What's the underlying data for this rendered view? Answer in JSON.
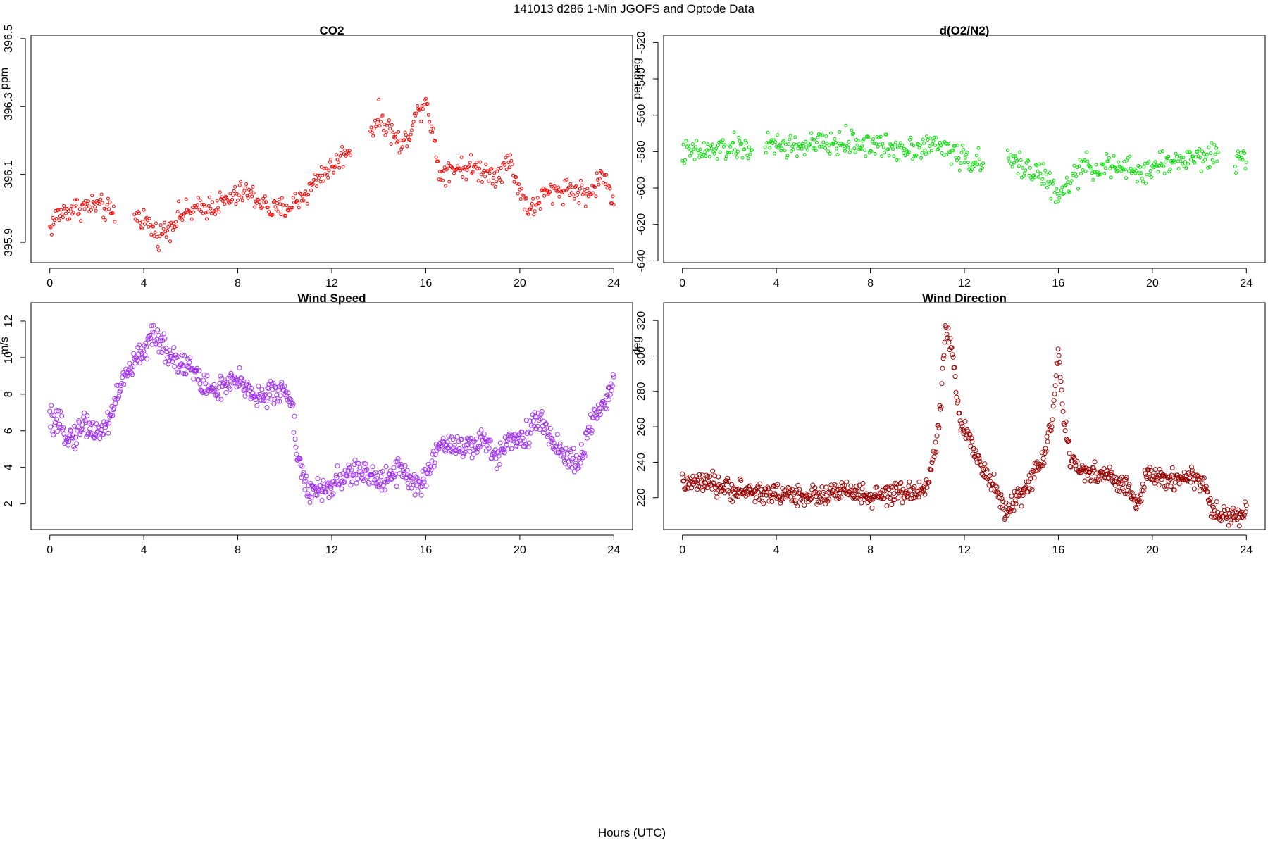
{
  "figure": {
    "title": "141013   d286   1-Min  JGOFS and Optode Data",
    "xlabel": "Hours (UTC)"
  },
  "chart_data": [
    {
      "type": "scatter",
      "title": "CO2",
      "ylabel": "ppm",
      "color": "#ff0000",
      "xlim": [
        -0.8,
        24.8
      ],
      "ylim": [
        395.84,
        396.51
      ],
      "x_ticks": [
        0,
        4,
        8,
        12,
        16,
        20,
        24
      ],
      "x_tick_labels": [
        "0",
        "4",
        "8",
        "12",
        "16",
        "20",
        "24"
      ],
      "y_ticks": [
        395.9,
        396.1,
        396.3,
        396.5
      ],
      "y_tick_labels": [
        "395.9",
        "396.1",
        "396.3",
        "396.5"
      ],
      "marker_radius": 2,
      "gaps": [
        [
          2.8,
          3.6
        ],
        [
          12.8,
          13.6
        ]
      ],
      "sample_step_hours": 0.04,
      "series": [
        {
          "trend_knots": [
            [
              0,
              395.94
            ],
            [
              0.3,
              395.98
            ],
            [
              1.0,
              396.0
            ],
            [
              2.0,
              396.01
            ],
            [
              2.8,
              395.98
            ],
            [
              3.6,
              395.98
            ],
            [
              4.0,
              395.97
            ],
            [
              4.6,
              395.92
            ],
            [
              5.0,
              395.94
            ],
            [
              5.5,
              395.98
            ],
            [
              6.5,
              396.0
            ],
            [
              7.5,
              396.02
            ],
            [
              8.3,
              396.05
            ],
            [
              9.0,
              396.02
            ],
            [
              9.5,
              395.99
            ],
            [
              10.3,
              396.01
            ],
            [
              11.0,
              396.05
            ],
            [
              11.5,
              396.1
            ],
            [
              12.0,
              396.12
            ],
            [
              12.8,
              396.18
            ],
            [
              13.6,
              396.22
            ],
            [
              14.0,
              396.27
            ],
            [
              14.5,
              396.23
            ],
            [
              15.0,
              396.18
            ],
            [
              15.5,
              396.26
            ],
            [
              16.0,
              396.33
            ],
            [
              16.3,
              396.22
            ],
            [
              16.6,
              396.1
            ],
            [
              17.0,
              396.12
            ],
            [
              18.0,
              396.12
            ],
            [
              19.0,
              396.1
            ],
            [
              19.6,
              396.14
            ],
            [
              20.0,
              396.05
            ],
            [
              20.5,
              395.99
            ],
            [
              21.0,
              396.04
            ],
            [
              22.0,
              396.06
            ],
            [
              23.0,
              396.04
            ],
            [
              23.5,
              396.1
            ],
            [
              24.0,
              396.03
            ]
          ],
          "noise": 0.03
        }
      ]
    },
    {
      "type": "scatter",
      "title": "d(O2/N2)",
      "ylabel": "per meg",
      "color": "#00e000",
      "xlim": [
        -0.8,
        24.8
      ],
      "ylim": [
        -641,
        -516
      ],
      "x_ticks": [
        0,
        4,
        8,
        12,
        16,
        20,
        24
      ],
      "x_tick_labels": [
        "0",
        "4",
        "8",
        "12",
        "16",
        "20",
        "24"
      ],
      "y_ticks": [
        -640,
        -620,
        -600,
        -580,
        -560,
        -540,
        -520
      ],
      "y_tick_labels": [
        "-640",
        "-620",
        "-600",
        "-580",
        "-560",
        "-540",
        "-520"
      ],
      "marker_radius": 2,
      "gaps": [
        [
          3.0,
          3.5
        ],
        [
          12.8,
          13.8
        ],
        [
          22.8,
          23.5
        ]
      ],
      "sample_step_hours": 0.04,
      "series": [
        {
          "trend_knots": [
            [
              0,
              -581
            ],
            [
              1.0,
              -580
            ],
            [
              2.0,
              -578
            ],
            [
              3.0,
              -578
            ],
            [
              3.5,
              -577
            ],
            [
              5.0,
              -577
            ],
            [
              6.0,
              -576
            ],
            [
              7.0,
              -575
            ],
            [
              8.0,
              -576
            ],
            [
              9.0,
              -578
            ],
            [
              10.0,
              -577
            ],
            [
              11.0,
              -577
            ],
            [
              11.5,
              -580
            ],
            [
              12.0,
              -584
            ],
            [
              12.8,
              -587
            ],
            [
              13.8,
              -585
            ],
            [
              14.5,
              -588
            ],
            [
              15.0,
              -590
            ],
            [
              15.5,
              -595
            ],
            [
              16.0,
              -606
            ],
            [
              16.4,
              -598
            ],
            [
              17.0,
              -589
            ],
            [
              18.0,
              -588
            ],
            [
              19.0,
              -590
            ],
            [
              19.6,
              -592
            ],
            [
              20.0,
              -588
            ],
            [
              21.0,
              -585
            ],
            [
              22.0,
              -583
            ],
            [
              22.8,
              -582
            ],
            [
              23.5,
              -584
            ],
            [
              24.0,
              -583
            ]
          ],
          "noise": 6
        }
      ]
    },
    {
      "type": "scatter",
      "title": "Wind Speed",
      "ylabel": "m/s",
      "color": "#a030f0",
      "xlim": [
        -0.8,
        24.8
      ],
      "ylim": [
        0.6,
        13.0
      ],
      "x_ticks": [
        0,
        4,
        8,
        12,
        16,
        20,
        24
      ],
      "x_tick_labels": [
        "0",
        "4",
        "8",
        "12",
        "16",
        "20",
        "24"
      ],
      "y_ticks": [
        2,
        4,
        6,
        8,
        10,
        12
      ],
      "y_tick_labels": [
        "2",
        "4",
        "6",
        "8",
        "10",
        "12"
      ],
      "marker_radius": 3,
      "gaps": [],
      "sample_step_hours": 0.03,
      "series": [
        {
          "trend_knots": [
            [
              0,
              6.6
            ],
            [
              1.0,
              5.6
            ],
            [
              1.5,
              6.5
            ],
            [
              2.0,
              5.8
            ],
            [
              2.5,
              6.5
            ],
            [
              3.0,
              8.5
            ],
            [
              3.5,
              9.5
            ],
            [
              4.0,
              10.5
            ],
            [
              4.5,
              11.2
            ],
            [
              5.0,
              10.3
            ],
            [
              5.5,
              9.8
            ],
            [
              6.0,
              9.5
            ],
            [
              6.5,
              8.5
            ],
            [
              7.0,
              8.2
            ],
            [
              8.0,
              8.7
            ],
            [
              9.0,
              7.8
            ],
            [
              10.0,
              8.3
            ],
            [
              10.3,
              7.5
            ],
            [
              10.5,
              5.0
            ],
            [
              11.0,
              2.5
            ],
            [
              12.0,
              3.0
            ],
            [
              13.0,
              3.8
            ],
            [
              14.0,
              3.3
            ],
            [
              15.0,
              4.0
            ],
            [
              15.5,
              3.0
            ],
            [
              16.0,
              3.2
            ],
            [
              16.5,
              5.2
            ],
            [
              17.0,
              5.3
            ],
            [
              18.0,
              5.0
            ],
            [
              18.5,
              5.5
            ],
            [
              19.0,
              4.5
            ],
            [
              19.5,
              5.7
            ],
            [
              20.0,
              5.5
            ],
            [
              20.8,
              6.6
            ],
            [
              21.5,
              5.3
            ],
            [
              22.0,
              4.5
            ],
            [
              22.5,
              4.2
            ],
            [
              23.0,
              6.3
            ],
            [
              23.5,
              7.0
            ],
            [
              24.0,
              9.0
            ]
          ],
          "noise": 0.6
        }
      ]
    },
    {
      "type": "scatter",
      "title": "Wind Direction",
      "ylabel": "deg",
      "color": "#990000",
      "xlim": [
        -0.8,
        24.8
      ],
      "ylim": [
        202,
        330
      ],
      "x_ticks": [
        0,
        4,
        8,
        12,
        16,
        20,
        24
      ],
      "x_tick_labels": [
        "0",
        "4",
        "8",
        "12",
        "16",
        "20",
        "24"
      ],
      "y_ticks": [
        220,
        240,
        260,
        280,
        300,
        320
      ],
      "y_tick_labels": [
        "220",
        "240",
        "260",
        "280",
        "300",
        "320"
      ],
      "marker_radius": 3,
      "gaps": [],
      "sample_step_hours": 0.03,
      "series": [
        {
          "trend_knots": [
            [
              0,
              228
            ],
            [
              1.0,
              228
            ],
            [
              2.0,
              225
            ],
            [
              3.0,
              223
            ],
            [
              4.0,
              222
            ],
            [
              6.0,
              221
            ],
            [
              7.0,
              224
            ],
            [
              8.0,
              220
            ],
            [
              9.0,
              222
            ],
            [
              10.0,
              223
            ],
            [
              10.5,
              230
            ],
            [
              10.9,
              258
            ],
            [
              11.2,
              315
            ],
            [
              11.5,
              300
            ],
            [
              11.8,
              262
            ],
            [
              12.3,
              252
            ],
            [
              12.8,
              236
            ],
            [
              13.3,
              225
            ],
            [
              13.8,
              212
            ],
            [
              14.2,
              218
            ],
            [
              14.8,
              230
            ],
            [
              15.3,
              240
            ],
            [
              15.7,
              262
            ],
            [
              16.0,
              302
            ],
            [
              16.2,
              268
            ],
            [
              16.5,
              240
            ],
            [
              17.0,
              235
            ],
            [
              18.0,
              233
            ],
            [
              19.0,
              225
            ],
            [
              19.4,
              215
            ],
            [
              19.8,
              234
            ],
            [
              20.5,
              230
            ],
            [
              21.5,
              232
            ],
            [
              22.2,
              229
            ],
            [
              22.5,
              213
            ],
            [
              23.0,
              210
            ],
            [
              24.0,
              211
            ]
          ],
          "noise": 5
        }
      ]
    }
  ]
}
